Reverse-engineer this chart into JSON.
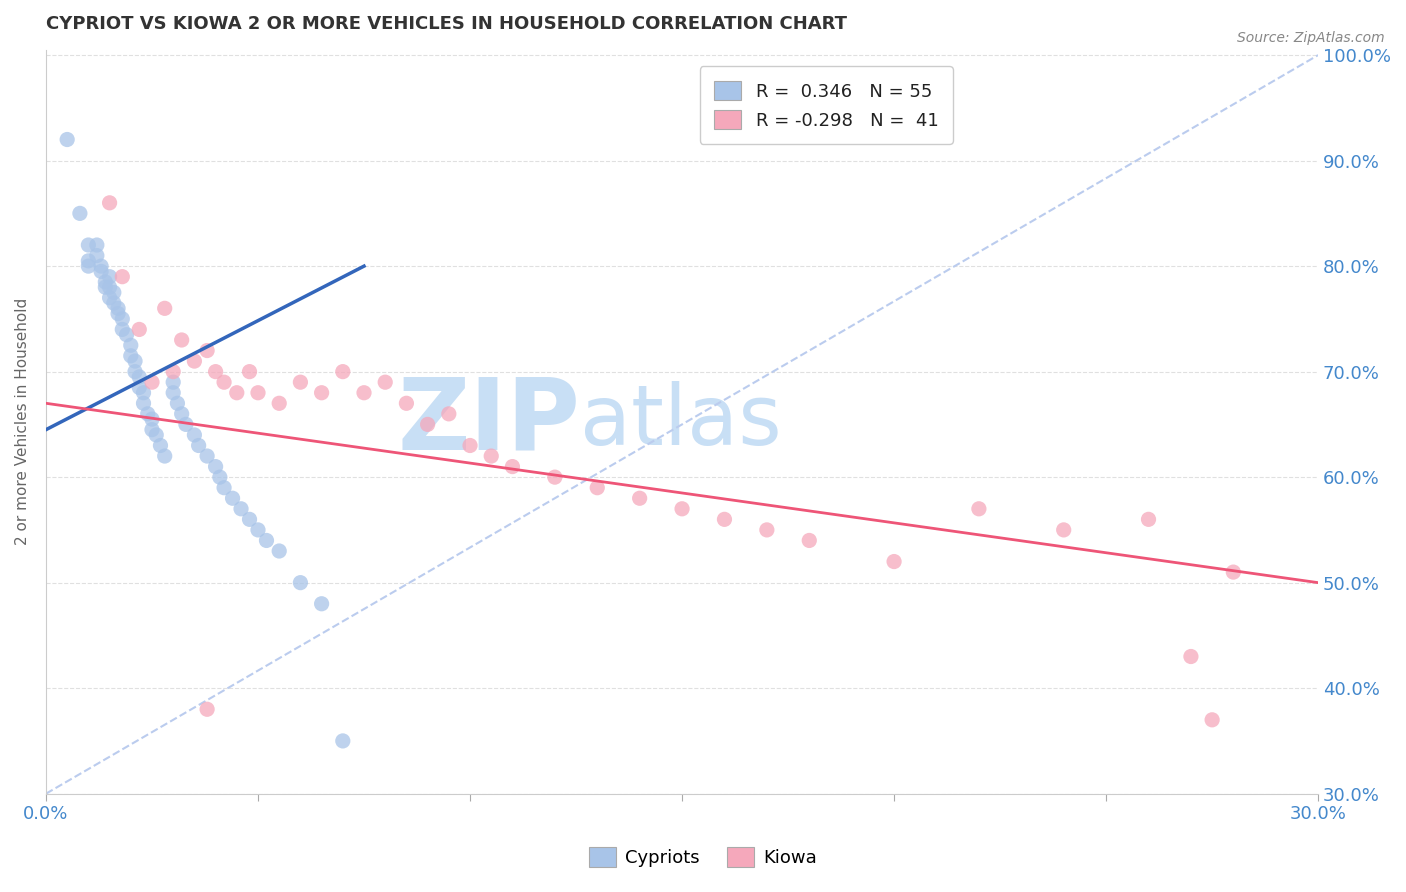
{
  "title": "CYPRIOT VS KIOWA 2 OR MORE VEHICLES IN HOUSEHOLD CORRELATION CHART",
  "ylabel": "2 or more Vehicles in Household",
  "source_text": "Source: ZipAtlas.com",
  "xlim": [
    0.0,
    0.3
  ],
  "ylim": [
    0.3,
    1.005
  ],
  "x_ticks": [
    0.0,
    0.05,
    0.1,
    0.15,
    0.2,
    0.25,
    0.3
  ],
  "y_ticks": [
    0.3,
    0.4,
    0.5,
    0.6,
    0.7,
    0.8,
    0.9,
    1.0
  ],
  "y_tick_labels_right": [
    "30.0%",
    "40.0%",
    "50.0%",
    "60.0%",
    "70.0%",
    "80.0%",
    "90.0%",
    "100.0%"
  ],
  "cypriot_color": "#a8c4e8",
  "kiowa_color": "#f5a8bb",
  "cypriot_line_color": "#3366bb",
  "kiowa_line_color": "#ee5577",
  "ref_line_color": "#bbccee",
  "background_color": "#ffffff",
  "grid_color": "#e0e0e0",
  "title_color": "#333333",
  "axis_label_color": "#666666",
  "tick_color": "#4488cc",
  "watermark_zip": "ZIP",
  "watermark_atlas": "atlas",
  "watermark_color_zip": "#c8dff5",
  "watermark_color_atlas": "#c8dff5",
  "legend_r_cypriot": "0.346",
  "legend_n_cypriot": "55",
  "legend_r_kiowa": "-0.298",
  "legend_n_kiowa": "41",
  "cypriot_x": [
    0.005,
    0.008,
    0.01,
    0.01,
    0.01,
    0.012,
    0.012,
    0.013,
    0.013,
    0.014,
    0.014,
    0.015,
    0.015,
    0.015,
    0.016,
    0.016,
    0.017,
    0.017,
    0.018,
    0.018,
    0.019,
    0.02,
    0.02,
    0.021,
    0.021,
    0.022,
    0.022,
    0.023,
    0.023,
    0.024,
    0.025,
    0.025,
    0.026,
    0.027,
    0.028,
    0.03,
    0.03,
    0.031,
    0.032,
    0.033,
    0.035,
    0.036,
    0.038,
    0.04,
    0.041,
    0.042,
    0.044,
    0.046,
    0.048,
    0.05,
    0.052,
    0.055,
    0.06,
    0.065,
    0.07
  ],
  "cypriot_y": [
    0.92,
    0.85,
    0.82,
    0.805,
    0.8,
    0.82,
    0.81,
    0.8,
    0.795,
    0.785,
    0.78,
    0.79,
    0.78,
    0.77,
    0.775,
    0.765,
    0.76,
    0.755,
    0.75,
    0.74,
    0.735,
    0.725,
    0.715,
    0.71,
    0.7,
    0.695,
    0.685,
    0.68,
    0.67,
    0.66,
    0.655,
    0.645,
    0.64,
    0.63,
    0.62,
    0.69,
    0.68,
    0.67,
    0.66,
    0.65,
    0.64,
    0.63,
    0.62,
    0.61,
    0.6,
    0.59,
    0.58,
    0.57,
    0.56,
    0.55,
    0.54,
    0.53,
    0.5,
    0.48,
    0.35
  ],
  "kiowa_x": [
    0.015,
    0.018,
    0.022,
    0.025,
    0.028,
    0.03,
    0.032,
    0.035,
    0.038,
    0.04,
    0.042,
    0.045,
    0.048,
    0.05,
    0.055,
    0.06,
    0.065,
    0.07,
    0.075,
    0.08,
    0.085,
    0.09,
    0.095,
    0.1,
    0.105,
    0.11,
    0.12,
    0.13,
    0.14,
    0.15,
    0.16,
    0.17,
    0.18,
    0.2,
    0.22,
    0.24,
    0.26,
    0.27,
    0.275,
    0.038,
    0.28
  ],
  "kiowa_y": [
    0.86,
    0.79,
    0.74,
    0.69,
    0.76,
    0.7,
    0.73,
    0.71,
    0.72,
    0.7,
    0.69,
    0.68,
    0.7,
    0.68,
    0.67,
    0.69,
    0.68,
    0.7,
    0.68,
    0.69,
    0.67,
    0.65,
    0.66,
    0.63,
    0.62,
    0.61,
    0.6,
    0.59,
    0.58,
    0.57,
    0.56,
    0.55,
    0.54,
    0.52,
    0.57,
    0.55,
    0.56,
    0.43,
    0.37,
    0.38,
    0.51
  ]
}
